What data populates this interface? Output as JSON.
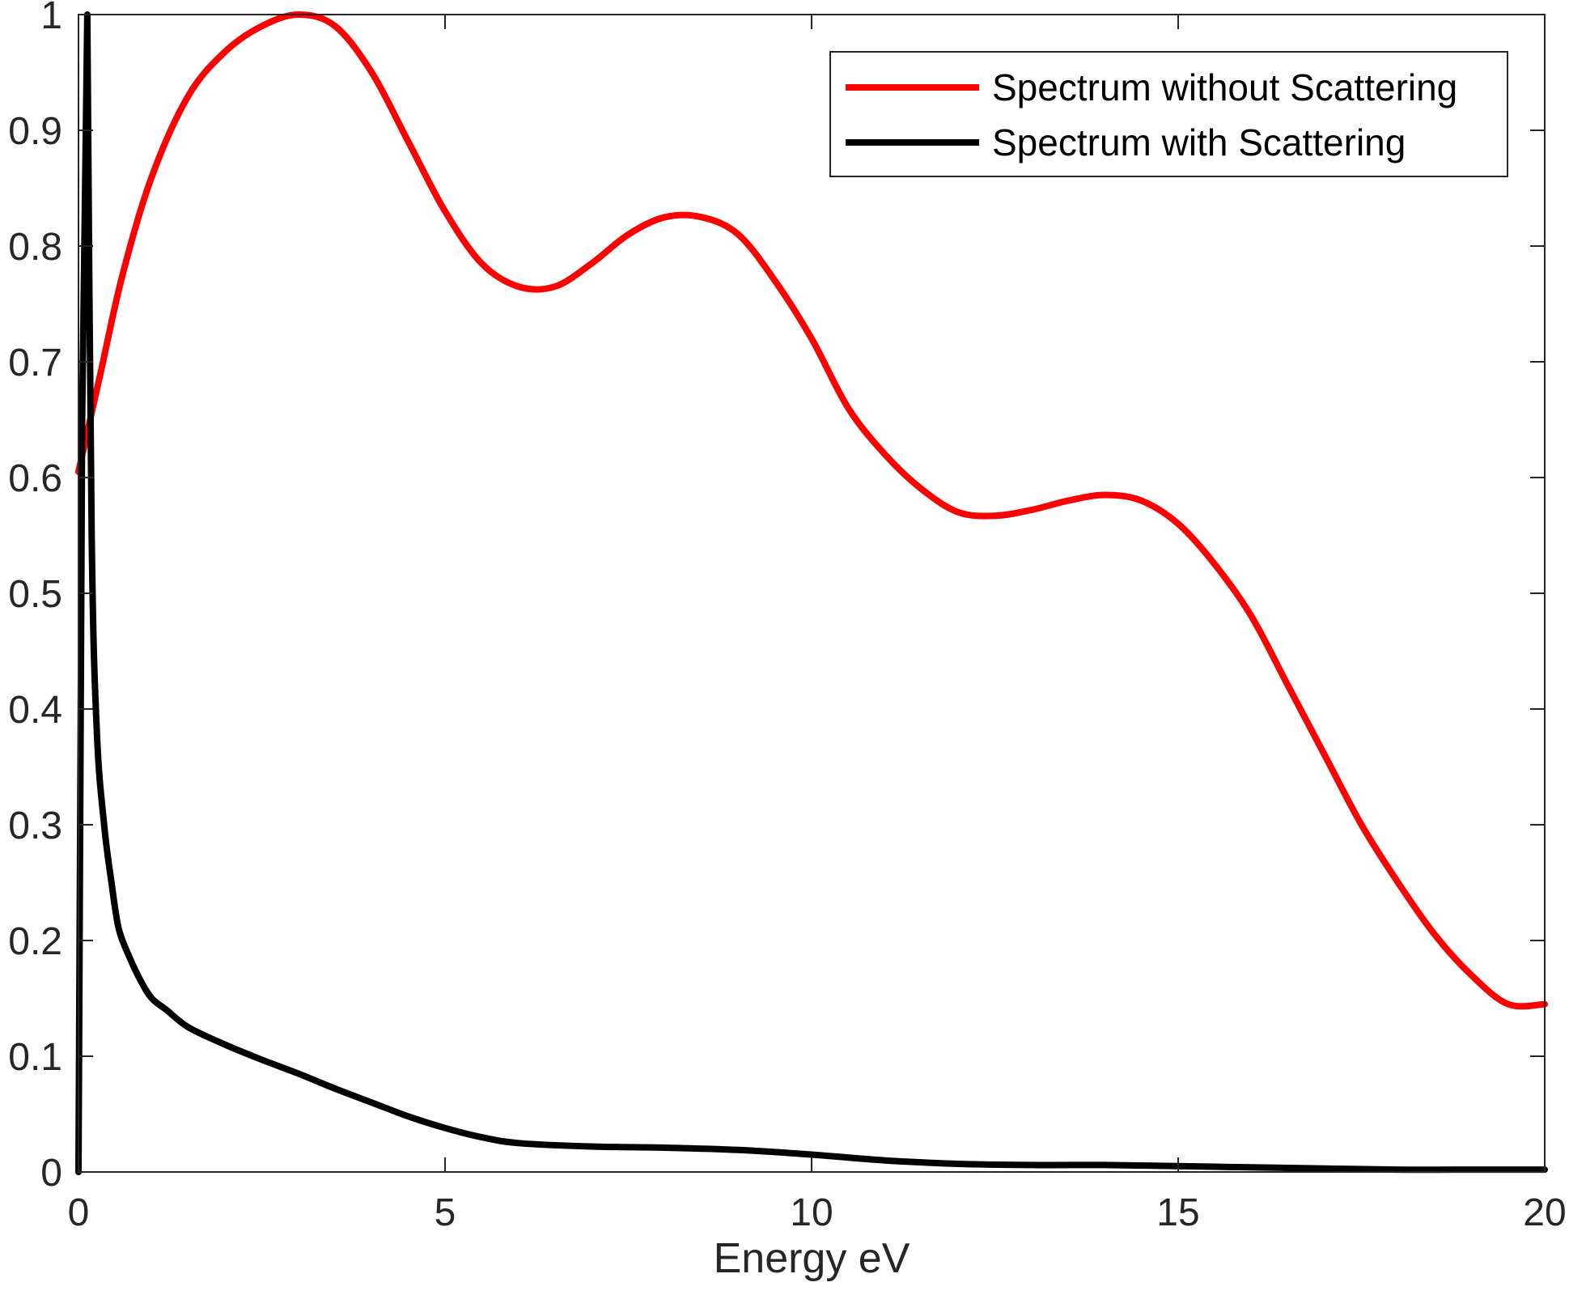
{
  "chart_data": {
    "type": "line",
    "title": "",
    "xlabel": "Energy eV",
    "ylabel": "",
    "xlim": [
      0,
      20
    ],
    "ylim": [
      0,
      1
    ],
    "xticks": [
      "0",
      "5",
      "10",
      "15",
      "20"
    ],
    "yticks": [
      "0",
      "0.1",
      "0.2",
      "0.3",
      "0.4",
      "0.5",
      "0.6",
      "0.7",
      "0.8",
      "0.9",
      "1"
    ],
    "grid": false,
    "legend_position": "top-right",
    "series": [
      {
        "name": "Spectrum without Scattering",
        "color": "#ff0000",
        "x": [
          0,
          0.3,
          0.6,
          1.0,
          1.5,
          2.0,
          2.5,
          3.0,
          3.5,
          4.0,
          4.5,
          5.0,
          5.5,
          6.0,
          6.5,
          7.0,
          7.5,
          8.0,
          8.5,
          9.0,
          9.5,
          10.0,
          10.5,
          11.0,
          11.5,
          12.0,
          12.5,
          13.0,
          13.5,
          14.0,
          14.5,
          15.0,
          15.5,
          16.0,
          16.5,
          17.0,
          17.5,
          18.0,
          18.5,
          19.0,
          19.5,
          20.0
        ],
        "y": [
          0.605,
          0.69,
          0.775,
          0.86,
          0.93,
          0.968,
          0.99,
          1.0,
          0.99,
          0.95,
          0.89,
          0.83,
          0.785,
          0.765,
          0.765,
          0.785,
          0.81,
          0.825,
          0.825,
          0.81,
          0.77,
          0.72,
          0.66,
          0.62,
          0.59,
          0.57,
          0.567,
          0.572,
          0.58,
          0.585,
          0.58,
          0.56,
          0.525,
          0.48,
          0.42,
          0.36,
          0.3,
          0.25,
          0.205,
          0.17,
          0.145,
          0.145
        ]
      },
      {
        "name": "Spectrum with Scattering",
        "color": "#000000",
        "x": [
          0,
          0.05,
          0.12,
          0.18,
          0.25,
          0.35,
          0.45,
          0.55,
          0.7,
          0.85,
          1.0,
          1.2,
          1.5,
          2.0,
          2.5,
          3.0,
          3.5,
          4.0,
          4.5,
          5.0,
          5.5,
          6.0,
          7.0,
          8.0,
          9.0,
          10.0,
          11.0,
          12.0,
          13.0,
          14.0,
          15.0,
          16.0,
          17.0,
          18.0,
          19.0,
          20.0
        ],
        "y": [
          0,
          0.65,
          1.0,
          0.55,
          0.38,
          0.3,
          0.25,
          0.21,
          0.185,
          0.165,
          0.15,
          0.14,
          0.125,
          0.11,
          0.097,
          0.085,
          0.072,
          0.06,
          0.048,
          0.038,
          0.03,
          0.025,
          0.022,
          0.021,
          0.019,
          0.015,
          0.01,
          0.007,
          0.006,
          0.006,
          0.005,
          0.004,
          0.003,
          0.002,
          0.002,
          0.002
        ]
      }
    ]
  }
}
